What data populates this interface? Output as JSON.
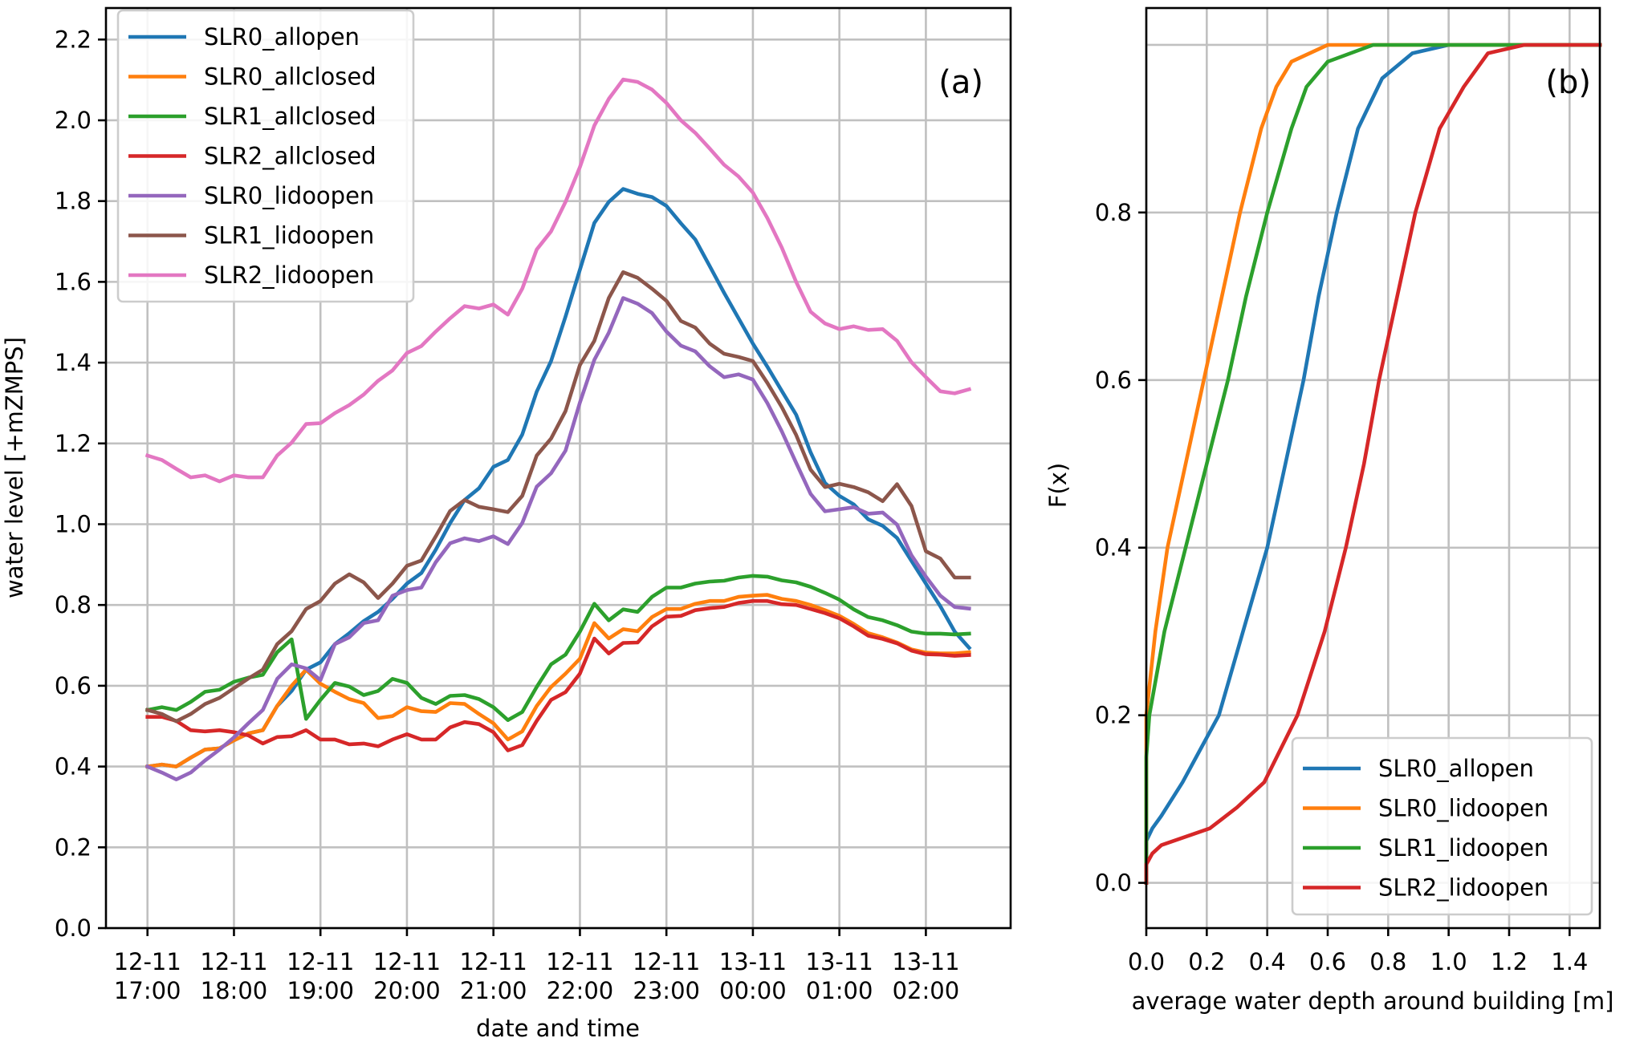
{
  "chart_data": [
    {
      "type": "line",
      "panel_label": "(a)",
      "title": "",
      "xlabel": "date and time",
      "ylabel": "water level [+mZMPS]",
      "x_unit": "hours since 12-11 17:00, 10-minute steps",
      "x_start_hours": 0,
      "x_step_hours": 0.16667,
      "xlim_hours": [
        -0.48,
        9.98
      ],
      "ylim": [
        0,
        2.278
      ],
      "xticks": [
        {
          "value": 0,
          "label": [
            "12-11",
            "17:00"
          ]
        },
        {
          "value": 1,
          "label": [
            "12-11",
            "18:00"
          ]
        },
        {
          "value": 2,
          "label": [
            "12-11",
            "19:00"
          ]
        },
        {
          "value": 3,
          "label": [
            "12-11",
            "20:00"
          ]
        },
        {
          "value": 4,
          "label": [
            "12-11",
            "21:00"
          ]
        },
        {
          "value": 5,
          "label": [
            "12-11",
            "22:00"
          ]
        },
        {
          "value": 6,
          "label": [
            "12-11",
            "23:00"
          ]
        },
        {
          "value": 7,
          "label": [
            "13-11",
            "00:00"
          ]
        },
        {
          "value": 8,
          "label": [
            "13-11",
            "01:00"
          ]
        },
        {
          "value": 9,
          "label": [
            "13-11",
            "02:00"
          ]
        }
      ],
      "yticks": [
        0.0,
        0.2,
        0.4,
        0.6,
        0.8,
        1.0,
        1.2,
        1.4,
        1.6,
        1.8,
        2.0,
        2.2
      ],
      "ytick_labels": [
        "0.0",
        "0.2",
        "0.4",
        "0.6",
        "0.8",
        "1.0",
        "1.2",
        "1.4",
        "1.6",
        "1.8",
        "2.0",
        "2.2"
      ],
      "grid": true,
      "legend_position": "upper-left",
      "series": [
        {
          "name": "SLR0_allopen",
          "color": "#1f77b4",
          "values": [
            0.4,
            0.405,
            0.4,
            0.422,
            0.442,
            0.445,
            0.465,
            0.482,
            0.49,
            0.55,
            0.587,
            0.64,
            0.658,
            0.703,
            0.73,
            0.76,
            0.783,
            0.815,
            0.853,
            0.879,
            0.937,
            1.003,
            1.06,
            1.089,
            1.142,
            1.159,
            1.222,
            1.328,
            1.404,
            1.514,
            1.63,
            1.746,
            1.798,
            1.83,
            1.818,
            1.81,
            1.788,
            1.745,
            1.705,
            1.639,
            1.573,
            1.51,
            1.447,
            1.39,
            1.33,
            1.271,
            1.178,
            1.102,
            1.07,
            1.049,
            1.012,
            0.996,
            0.966,
            0.909,
            0.853,
            0.797,
            0.734,
            0.694
          ]
        },
        {
          "name": "SLR0_allclosed",
          "color": "#ff7f0e",
          "values": [
            0.4,
            0.405,
            0.4,
            0.422,
            0.442,
            0.445,
            0.465,
            0.482,
            0.49,
            0.55,
            0.6,
            0.64,
            0.605,
            0.585,
            0.567,
            0.557,
            0.52,
            0.525,
            0.547,
            0.537,
            0.535,
            0.557,
            0.555,
            0.53,
            0.507,
            0.467,
            0.487,
            0.55,
            0.597,
            0.63,
            0.667,
            0.755,
            0.717,
            0.74,
            0.735,
            0.77,
            0.79,
            0.79,
            0.803,
            0.81,
            0.81,
            0.82,
            0.823,
            0.825,
            0.815,
            0.81,
            0.8,
            0.787,
            0.773,
            0.753,
            0.73,
            0.72,
            0.707,
            0.69,
            0.682,
            0.68,
            0.68,
            0.683
          ]
        },
        {
          "name": "SLR1_allclosed",
          "color": "#2ca02c",
          "values": [
            0.54,
            0.547,
            0.54,
            0.56,
            0.585,
            0.59,
            0.61,
            0.62,
            0.627,
            0.683,
            0.715,
            0.518,
            0.565,
            0.607,
            0.598,
            0.577,
            0.587,
            0.617,
            0.607,
            0.57,
            0.555,
            0.575,
            0.577,
            0.567,
            0.547,
            0.515,
            0.535,
            0.597,
            0.653,
            0.677,
            0.734,
            0.803,
            0.762,
            0.789,
            0.783,
            0.82,
            0.843,
            0.843,
            0.853,
            0.858,
            0.86,
            0.868,
            0.872,
            0.87,
            0.861,
            0.856,
            0.845,
            0.83,
            0.813,
            0.789,
            0.77,
            0.762,
            0.75,
            0.734,
            0.729,
            0.729,
            0.727,
            0.729
          ]
        },
        {
          "name": "SLR2_allclosed",
          "color": "#d62728",
          "values": [
            0.523,
            0.523,
            0.513,
            0.49,
            0.487,
            0.49,
            0.485,
            0.477,
            0.457,
            0.473,
            0.475,
            0.49,
            0.467,
            0.467,
            0.455,
            0.457,
            0.45,
            0.467,
            0.48,
            0.467,
            0.467,
            0.497,
            0.51,
            0.505,
            0.485,
            0.44,
            0.453,
            0.513,
            0.565,
            0.584,
            0.63,
            0.717,
            0.68,
            0.706,
            0.707,
            0.747,
            0.771,
            0.773,
            0.787,
            0.792,
            0.795,
            0.805,
            0.81,
            0.81,
            0.802,
            0.8,
            0.79,
            0.78,
            0.767,
            0.747,
            0.724,
            0.716,
            0.705,
            0.687,
            0.678,
            0.677,
            0.674,
            0.676
          ]
        },
        {
          "name": "SLR0_lidoopen",
          "color": "#9467bd",
          "values": [
            0.4,
            0.385,
            0.368,
            0.385,
            0.415,
            0.442,
            0.472,
            0.507,
            0.54,
            0.617,
            0.653,
            0.643,
            0.614,
            0.703,
            0.72,
            0.755,
            0.762,
            0.823,
            0.837,
            0.843,
            0.906,
            0.953,
            0.965,
            0.958,
            0.97,
            0.951,
            1.003,
            1.093,
            1.126,
            1.182,
            1.301,
            1.407,
            1.474,
            1.56,
            1.546,
            1.523,
            1.477,
            1.442,
            1.428,
            1.391,
            1.364,
            1.371,
            1.358,
            1.3,
            1.23,
            1.152,
            1.075,
            1.032,
            1.037,
            1.042,
            1.026,
            1.029,
            0.999,
            0.923,
            0.87,
            0.823,
            0.795,
            0.791
          ]
        },
        {
          "name": "SLR1_lidoopen",
          "color": "#8c564b",
          "values": [
            0.54,
            0.53,
            0.512,
            0.53,
            0.555,
            0.57,
            0.594,
            0.618,
            0.64,
            0.703,
            0.735,
            0.79,
            0.81,
            0.853,
            0.876,
            0.856,
            0.817,
            0.853,
            0.897,
            0.91,
            0.97,
            1.033,
            1.06,
            1.043,
            1.037,
            1.03,
            1.07,
            1.17,
            1.212,
            1.28,
            1.394,
            1.454,
            1.56,
            1.624,
            1.61,
            1.583,
            1.553,
            1.503,
            1.487,
            1.447,
            1.422,
            1.414,
            1.404,
            1.35,
            1.29,
            1.221,
            1.135,
            1.092,
            1.1,
            1.092,
            1.079,
            1.057,
            1.099,
            1.045,
            0.933,
            0.915,
            0.868,
            0.868
          ]
        },
        {
          "name": "SLR2_lidoopen",
          "color": "#e377c2",
          "values": [
            1.17,
            1.159,
            1.137,
            1.116,
            1.121,
            1.106,
            1.121,
            1.116,
            1.116,
            1.17,
            1.202,
            1.248,
            1.25,
            1.275,
            1.295,
            1.321,
            1.355,
            1.381,
            1.424,
            1.441,
            1.477,
            1.51,
            1.54,
            1.534,
            1.544,
            1.519,
            1.583,
            1.68,
            1.725,
            1.798,
            1.884,
            1.987,
            2.053,
            2.101,
            2.095,
            2.076,
            2.043,
            2.0,
            1.969,
            1.93,
            1.89,
            1.861,
            1.821,
            1.758,
            1.685,
            1.6,
            1.526,
            1.497,
            1.483,
            1.49,
            1.481,
            1.483,
            1.454,
            1.401,
            1.364,
            1.329,
            1.324,
            1.334
          ]
        }
      ]
    },
    {
      "type": "line",
      "panel_label": "(b)",
      "title": "",
      "xlabel": "average water depth around building [m]",
      "ylabel": "F(x)",
      "xlim": [
        0,
        1.5
      ],
      "ylim": [
        -0.054,
        1.044
      ],
      "xticks": [
        0.0,
        0.2,
        0.4,
        0.6,
        0.8,
        1.0,
        1.2,
        1.4
      ],
      "xtick_labels": [
        "0.0",
        "0.2",
        "0.4",
        "0.6",
        "0.8",
        "1.0",
        "1.2",
        "1.4"
      ],
      "yticks": [
        0.0,
        0.2,
        0.4,
        0.6,
        0.8
      ],
      "ytick_labels": [
        "0.0",
        "0.2",
        "0.4",
        "0.6",
        "0.8"
      ],
      "y_gridlines": [
        0.0,
        0.2,
        0.4,
        0.6,
        0.8,
        1.0
      ],
      "grid": true,
      "legend_position": "lower-right",
      "series": [
        {
          "name": "SLR0_allopen",
          "color": "#1f77b4",
          "x": [
            0,
            0.0,
            0.02,
            0.05,
            0.12,
            0.18,
            0.24,
            0.32,
            0.4,
            0.46,
            0.52,
            0.57,
            0.63,
            0.7,
            0.78,
            0.88,
            1.0,
            1.5
          ],
          "y": [
            0,
            0.05,
            0.065,
            0.08,
            0.12,
            0.16,
            0.2,
            0.3,
            0.4,
            0.5,
            0.6,
            0.7,
            0.8,
            0.9,
            0.96,
            0.99,
            1.0,
            1.0
          ]
        },
        {
          "name": "SLR0_lidoopen",
          "color": "#ff7f0e",
          "x": [
            0,
            0.0,
            0.03,
            0.07,
            0.13,
            0.19,
            0.25,
            0.31,
            0.38,
            0.43,
            0.48,
            0.6,
            1.5
          ],
          "y": [
            0,
            0.2,
            0.3,
            0.4,
            0.5,
            0.6,
            0.7,
            0.8,
            0.9,
            0.95,
            0.98,
            1.0,
            1.0
          ]
        },
        {
          "name": "SLR1_lidoopen",
          "color": "#2ca02c",
          "x": [
            0,
            0.0,
            0.01,
            0.06,
            0.13,
            0.2,
            0.27,
            0.33,
            0.4,
            0.48,
            0.53,
            0.6,
            0.75,
            1.5
          ],
          "y": [
            0,
            0.15,
            0.2,
            0.3,
            0.4,
            0.5,
            0.6,
            0.7,
            0.8,
            0.9,
            0.95,
            0.98,
            1.0,
            1.0
          ]
        },
        {
          "name": "SLR2_lidoopen",
          "color": "#d62728",
          "x": [
            0,
            0.0,
            0.02,
            0.05,
            0.21,
            0.3,
            0.39,
            0.5,
            0.59,
            0.66,
            0.72,
            0.77,
            0.83,
            0.89,
            0.97,
            1.05,
            1.13,
            1.25,
            1.5
          ],
          "y": [
            0,
            0.022,
            0.035,
            0.045,
            0.065,
            0.09,
            0.12,
            0.2,
            0.3,
            0.4,
            0.5,
            0.6,
            0.7,
            0.8,
            0.9,
            0.95,
            0.99,
            1.0,
            1.0
          ]
        }
      ]
    }
  ]
}
